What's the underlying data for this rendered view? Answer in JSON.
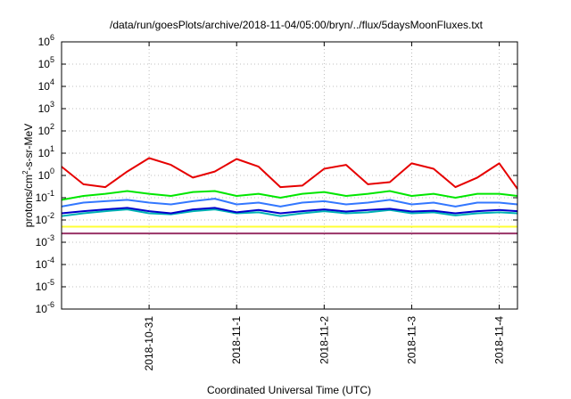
{
  "chart_data": {
    "type": "line",
    "title": "/data/run/goesPlots/archive/2018-11-04/05:00/bryn/../flux/5daysMoonFluxes.txt",
    "xlabel": "Coordinated Universal Time (UTC)",
    "ylabel_parts": {
      "base": "protons/cm",
      "sup": "2",
      "rest": "-s-sr-MeV"
    },
    "y_scale": "log",
    "ylim": [
      1e-06,
      1000000.0
    ],
    "y_ticks": [
      {
        "value": 1e-06,
        "base": "10",
        "exp": "-6"
      },
      {
        "value": 1e-05,
        "base": "10",
        "exp": "-5"
      },
      {
        "value": 0.0001,
        "base": "10",
        "exp": "-4"
      },
      {
        "value": 0.001,
        "base": "10",
        "exp": "-3"
      },
      {
        "value": 0.01,
        "base": "10",
        "exp": "-2"
      },
      {
        "value": 0.1,
        "base": "10",
        "exp": "-1"
      },
      {
        "value": 1,
        "base": "10",
        "exp": "0"
      },
      {
        "value": 10,
        "base": "10",
        "exp": "1"
      },
      {
        "value": 100,
        "base": "10",
        "exp": "2"
      },
      {
        "value": 1000,
        "base": "10",
        "exp": "3"
      },
      {
        "value": 10000,
        "base": "10",
        "exp": "4"
      },
      {
        "value": 100000,
        "base": "10",
        "exp": "5"
      },
      {
        "value": 1000000,
        "base": "10",
        "exp": "6"
      }
    ],
    "xlim": [
      "2018-10-30T00:00",
      "2018-11-04T05:00"
    ],
    "x_ticks": [
      {
        "value": "2018-10-31T00:00",
        "label": "2018-10-31"
      },
      {
        "value": "2018-11-01T00:00",
        "label": "2018-11-1"
      },
      {
        "value": "2018-11-02T00:00",
        "label": "2018-11-2"
      },
      {
        "value": "2018-11-03T00:00",
        "label": "2018-11-3"
      },
      {
        "value": "2018-11-04T00:00",
        "label": "2018-11-4"
      }
    ],
    "grid": true,
    "legend": "none",
    "x": [
      "2018-10-30T00:00",
      "2018-10-30T06:00",
      "2018-10-30T12:00",
      "2018-10-30T18:00",
      "2018-10-31T00:00",
      "2018-10-31T06:00",
      "2018-10-31T12:00",
      "2018-10-31T18:00",
      "2018-11-01T00:00",
      "2018-11-01T06:00",
      "2018-11-01T12:00",
      "2018-11-01T18:00",
      "2018-11-02T00:00",
      "2018-11-02T06:00",
      "2018-11-02T12:00",
      "2018-11-02T18:00",
      "2018-11-03T00:00",
      "2018-11-03T06:00",
      "2018-11-03T12:00",
      "2018-11-03T18:00",
      "2018-11-04T00:00",
      "2018-11-04T05:00"
    ],
    "series": [
      {
        "color": "#e60000",
        "values": [
          2.5,
          0.4,
          0.3,
          1.5,
          6.0,
          3.0,
          0.8,
          1.5,
          5.5,
          2.5,
          0.3,
          0.35,
          2.0,
          3.0,
          0.4,
          0.5,
          3.5,
          2.0,
          0.3,
          0.8,
          3.5,
          0.25
        ]
      },
      {
        "color": "#00e600",
        "values": [
          0.08,
          0.12,
          0.15,
          0.2,
          0.15,
          0.12,
          0.18,
          0.2,
          0.12,
          0.15,
          0.1,
          0.15,
          0.18,
          0.12,
          0.15,
          0.2,
          0.12,
          0.15,
          0.1,
          0.15,
          0.15,
          0.12
        ]
      },
      {
        "color": "#3377ff",
        "values": [
          0.04,
          0.06,
          0.07,
          0.08,
          0.06,
          0.05,
          0.07,
          0.09,
          0.05,
          0.06,
          0.04,
          0.06,
          0.07,
          0.05,
          0.06,
          0.08,
          0.05,
          0.06,
          0.04,
          0.06,
          0.06,
          0.05
        ]
      },
      {
        "color": "#00b3b3",
        "values": [
          0.015,
          0.02,
          0.025,
          0.03,
          0.02,
          0.018,
          0.025,
          0.03,
          0.02,
          0.022,
          0.015,
          0.02,
          0.025,
          0.02,
          0.022,
          0.028,
          0.02,
          0.022,
          0.016,
          0.02,
          0.022,
          0.02
        ]
      },
      {
        "color": "#0000cc",
        "values": [
          0.02,
          0.025,
          0.03,
          0.035,
          0.025,
          0.02,
          0.03,
          0.035,
          0.022,
          0.028,
          0.02,
          0.025,
          0.03,
          0.024,
          0.028,
          0.032,
          0.024,
          0.026,
          0.02,
          0.025,
          0.028,
          0.025
        ]
      },
      {
        "color": "#ffff33",
        "values": [
          0.005,
          0.005,
          0.005,
          0.005,
          0.005,
          0.005,
          0.005,
          0.005,
          0.005,
          0.005,
          0.005,
          0.005,
          0.005,
          0.005,
          0.005,
          0.005,
          0.005,
          0.005,
          0.005,
          0.005,
          0.005,
          0.005
        ]
      },
      {
        "color": "#993366",
        "values": [
          0.0025,
          0.0025,
          0.0025,
          0.0025,
          0.0025,
          0.0025,
          0.0025,
          0.0025,
          0.0025,
          0.0025,
          0.0025,
          0.0025,
          0.0025,
          0.0025,
          0.0025,
          0.0025,
          0.0025,
          0.0025,
          0.0025,
          0.0025,
          0.0025,
          0.0025
        ]
      }
    ]
  }
}
